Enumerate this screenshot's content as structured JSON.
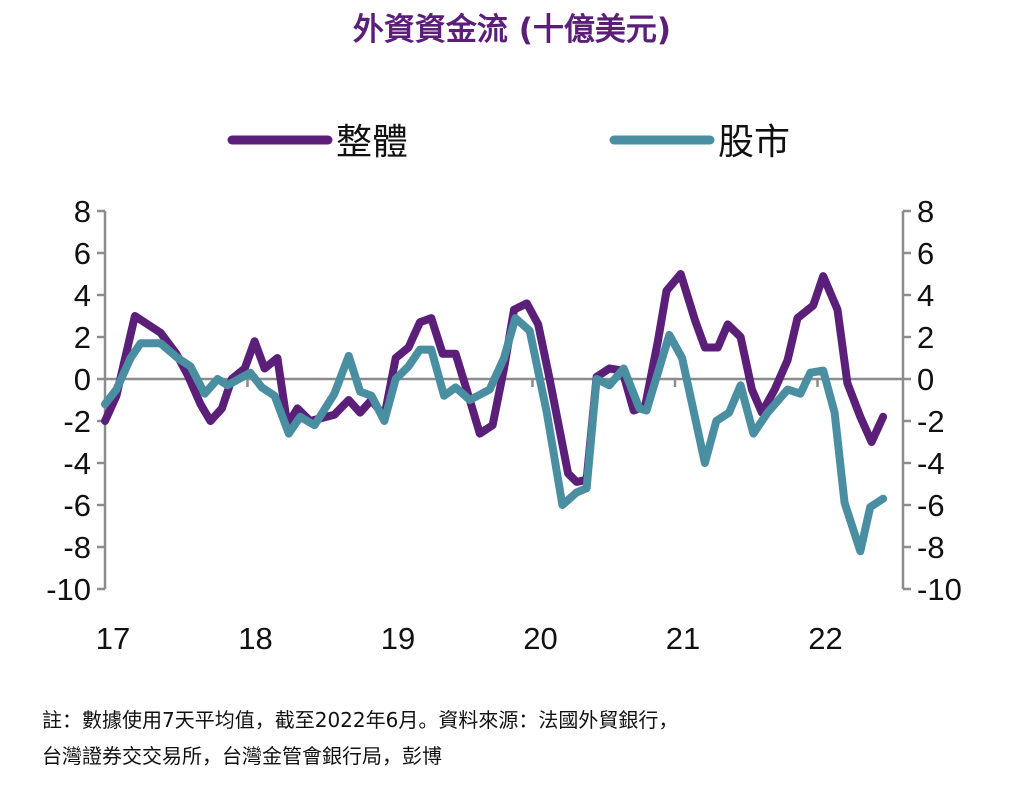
{
  "chart_data": {
    "type": "line",
    "title": "外資資金流 (十億美元)",
    "xlabel": "",
    "ylabel": "",
    "xlim": [
      17,
      22.5
    ],
    "ylim": [
      -10,
      8
    ],
    "x_ticks": [
      "17",
      "18",
      "19",
      "20",
      "21",
      "22"
    ],
    "y_ticks": [
      "8",
      "6",
      "4",
      "2",
      "0",
      "-2",
      "-4",
      "-6",
      "-8",
      "-10"
    ],
    "legend_position": "top",
    "grid": false,
    "series": [
      {
        "name": "整體",
        "color": "#5b1f7a",
        "x": [
          17.0,
          17.08,
          17.21,
          17.39,
          17.5,
          17.58,
          17.67,
          17.74,
          17.82,
          17.89,
          17.98,
          18.05,
          18.12,
          18.21,
          18.28,
          18.35,
          18.44,
          18.61,
          18.71,
          18.79,
          18.87,
          18.96,
          19.04,
          19.13,
          19.21,
          19.29,
          19.37,
          19.46,
          19.56,
          19.63,
          19.72,
          19.8,
          19.87,
          19.96,
          20.04,
          20.12,
          20.25,
          20.31,
          20.38,
          20.45,
          20.54,
          20.63,
          20.71,
          20.79,
          20.88,
          20.94,
          21.04,
          21.14,
          21.21,
          21.3,
          21.37,
          21.46,
          21.54,
          21.61,
          21.7,
          21.79,
          21.86,
          21.97,
          22.04,
          22.14,
          22.21,
          22.3,
          22.38,
          22.46
        ],
        "y": [
          -2.0,
          -0.8,
          3.0,
          2.2,
          1.2,
          0.2,
          -1.2,
          -2.0,
          -1.4,
          0.0,
          0.5,
          1.8,
          0.5,
          1.0,
          -2.2,
          -1.4,
          -2.0,
          -1.7,
          -1.0,
          -1.6,
          -1.0,
          -1.8,
          1.0,
          1.5,
          2.7,
          2.9,
          1.2,
          1.2,
          -1.0,
          -2.6,
          -2.2,
          0.5,
          3.3,
          3.6,
          2.6,
          0.0,
          -4.5,
          -4.9,
          -4.8,
          0.1,
          0.5,
          0.4,
          -1.5,
          -1.3,
          1.8,
          4.2,
          5.0,
          2.8,
          1.5,
          1.5,
          2.6,
          2.0,
          -0.5,
          -1.6,
          -0.5,
          0.9,
          2.9,
          3.5,
          4.9,
          3.3,
          -0.2,
          -1.8,
          -3.0,
          -1.8
        ]
      },
      {
        "name": "股市",
        "color": "#4a8fa1",
        "x": [
          17.0,
          17.08,
          17.18,
          17.25,
          17.39,
          17.51,
          17.6,
          17.7,
          17.79,
          17.86,
          18.02,
          18.1,
          18.19,
          18.29,
          18.37,
          18.47,
          18.61,
          18.71,
          18.79,
          18.87,
          18.96,
          19.04,
          19.13,
          19.21,
          19.29,
          19.38,
          19.46,
          19.56,
          19.7,
          19.8,
          19.88,
          19.98,
          20.1,
          20.21,
          20.31,
          20.38,
          20.45,
          20.54,
          20.64,
          20.75,
          20.8,
          20.96,
          21.05,
          21.21,
          21.29,
          21.38,
          21.46,
          21.55,
          21.65,
          21.79,
          21.88,
          21.95,
          22.04,
          22.12,
          22.19,
          22.3,
          22.37,
          22.46
        ],
        "y": [
          -1.2,
          -0.5,
          1.0,
          1.7,
          1.7,
          1.0,
          0.6,
          -0.7,
          0.0,
          -0.3,
          0.3,
          -0.4,
          -0.8,
          -2.6,
          -1.8,
          -2.2,
          -0.7,
          1.1,
          -0.6,
          -0.8,
          -2.0,
          0.0,
          0.6,
          1.4,
          1.4,
          -0.8,
          -0.4,
          -1.0,
          -0.5,
          1.0,
          2.9,
          2.3,
          -1.6,
          -6.0,
          -5.4,
          -5.2,
          0.0,
          -0.3,
          0.5,
          -1.4,
          -1.5,
          2.1,
          1.0,
          -4.0,
          -2.0,
          -1.6,
          -0.3,
          -2.6,
          -1.6,
          -0.5,
          -0.7,
          0.3,
          0.4,
          -1.6,
          -5.9,
          -8.2,
          -6.1,
          -5.7
        ]
      }
    ],
    "footnote": [
      "註：數據使用7天平均值，截至2022年6月。資料來源：法國外貿銀行，",
      "台灣證券交交易所，台灣金管會銀行局，彭博"
    ]
  }
}
